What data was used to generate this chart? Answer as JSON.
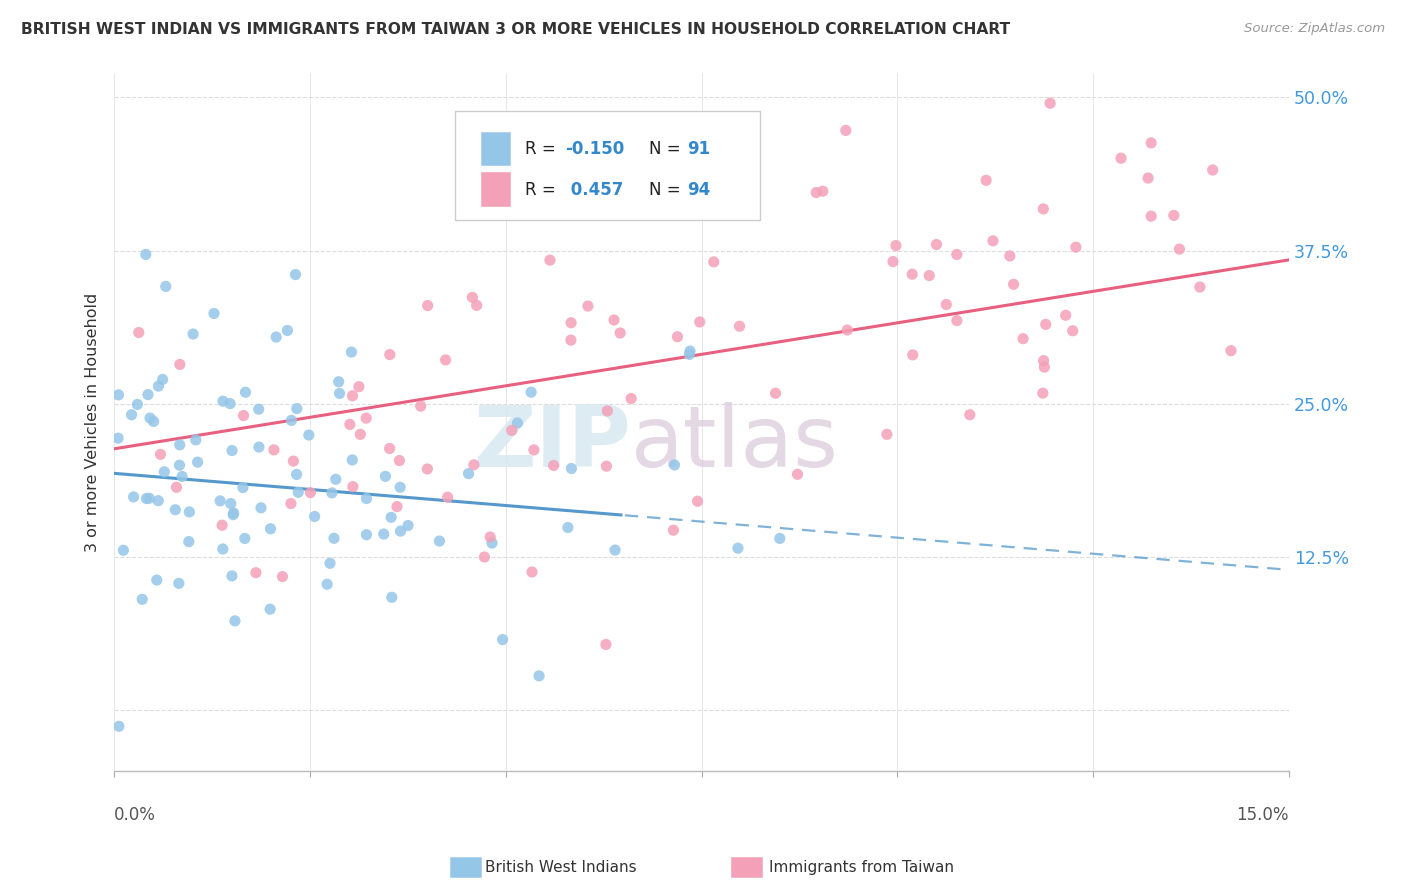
{
  "title": "BRITISH WEST INDIAN VS IMMIGRANTS FROM TAIWAN 3 OR MORE VEHICLES IN HOUSEHOLD CORRELATION CHART",
  "source": "Source: ZipAtlas.com",
  "ylabel": "3 or more Vehicles in Household",
  "xmin": 0.0,
  "xmax": 15.0,
  "ymin": -5.0,
  "ymax": 52.0,
  "ytick_vals": [
    0.0,
    12.5,
    25.0,
    37.5,
    50.0
  ],
  "ytick_labels": [
    "",
    "12.5%",
    "25.0%",
    "37.5%",
    "50.0%"
  ],
  "blue_color": "#94C6E8",
  "pink_color": "#F4A0B8",
  "blue_line_color": "#5599CC",
  "pink_line_color": "#E86080",
  "label1": "British West Indians",
  "label2": "Immigrants from Taiwan",
  "R1": -0.15,
  "N1": 91,
  "R2": 0.457,
  "N2": 94,
  "watermark_zip": "ZIP",
  "watermark_atlas": "atlas",
  "background_color": "#FFFFFF",
  "grid_color": "#DDDDDD",
  "blue_x1_mean": 2.5,
  "blue_x1_std": 2.0,
  "blue_y1_mean": 18.0,
  "blue_y1_std": 7.0,
  "pink_x2_mean": 6.5,
  "pink_x2_std": 4.0,
  "pink_y2_mean": 28.0,
  "pink_y2_std": 9.0
}
